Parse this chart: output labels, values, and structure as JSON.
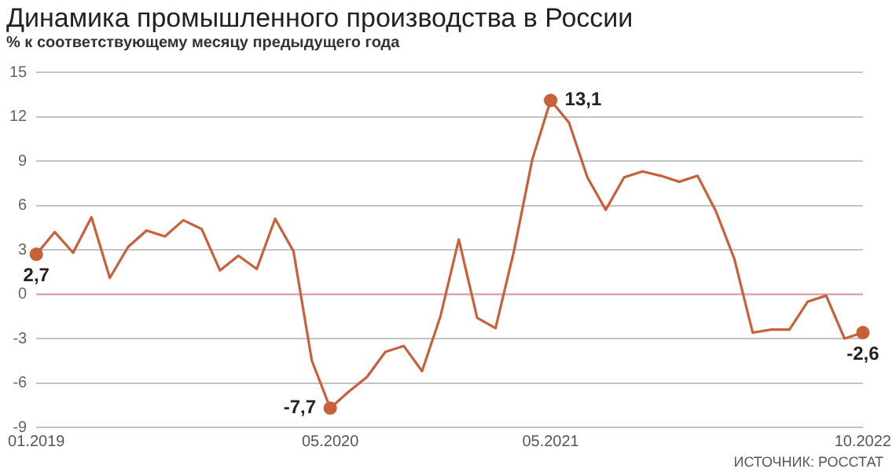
{
  "chart_data": {
    "type": "line",
    "title": "Динамика промышленного производства в России",
    "subtitle": "% к соответствующему месяцу предыдущего года",
    "categories": [
      "01.2019",
      null,
      null,
      null,
      null,
      null,
      null,
      null,
      null,
      null,
      null,
      null,
      null,
      null,
      null,
      null,
      "05.2020",
      null,
      null,
      null,
      null,
      null,
      null,
      null,
      null,
      null,
      null,
      null,
      "05.2021",
      null,
      null,
      null,
      null,
      null,
      null,
      null,
      null,
      null,
      null,
      null,
      null,
      null,
      null,
      null,
      null,
      "10.2022"
    ],
    "series": [
      {
        "color": "#c8603a",
        "values": [
          2.7,
          4.2,
          2.8,
          5.2,
          1.1,
          3.2,
          4.3,
          3.9,
          5.0,
          4.4,
          1.6,
          2.6,
          1.7,
          5.1,
          2.9,
          -4.5,
          -7.7,
          -6.6,
          -5.6,
          -3.9,
          -3.5,
          -5.2,
          -1.5,
          3.7,
          -1.6,
          -2.3,
          2.9,
          9.1,
          13.1,
          11.6,
          7.9,
          5.7,
          7.9,
          8.3,
          8.0,
          7.6,
          8.0,
          5.6,
          2.4,
          -2.6,
          -2.4,
          -2.4,
          -0.5,
          -0.1,
          -3.0,
          -2.6
        ],
        "value_labels": [
          "2,7",
          null,
          null,
          null,
          null,
          null,
          null,
          null,
          null,
          null,
          null,
          null,
          null,
          null,
          null,
          null,
          "-7,7",
          null,
          null,
          null,
          null,
          null,
          null,
          null,
          null,
          null,
          null,
          null,
          "13,1",
          null,
          null,
          null,
          null,
          null,
          null,
          null,
          null,
          null,
          null,
          null,
          null,
          null,
          null,
          null,
          null,
          "-2,6"
        ]
      }
    ],
    "ylim": [
      -9,
      15
    ],
    "yticks": [
      -9,
      -6,
      -3,
      0,
      3,
      6,
      9,
      12,
      15
    ],
    "grid": "y",
    "legend": false,
    "ref_lines": [
      {
        "axis": "y",
        "value": 0,
        "color": "#e0a0a8"
      }
    ],
    "annotations": [
      "ИСТОЧНИК: РОССТАТ"
    ]
  }
}
